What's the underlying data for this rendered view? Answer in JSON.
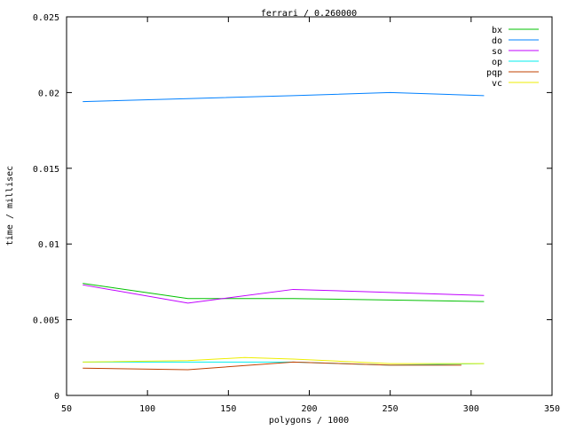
{
  "chart_data": {
    "type": "line",
    "title": "ferrari / 0.260000",
    "xlabel": "polygons / 1000",
    "ylabel": "time / millisec",
    "xlim": [
      50,
      350
    ],
    "ylim": [
      0,
      0.025
    ],
    "xticks": [
      "50",
      "100",
      "150",
      "200",
      "250",
      "300",
      "350"
    ],
    "yticks": [
      "0",
      "0.005",
      "0.01",
      "0.015",
      "0.02",
      "0.025"
    ],
    "grid": false,
    "legend_position": "top-right",
    "series": [
      {
        "name": "bx",
        "color": "#00c000",
        "x": [
          60,
          125,
          190,
          250,
          308
        ],
        "y": [
          0.0074,
          0.0064,
          0.0064,
          0.0063,
          0.0062
        ]
      },
      {
        "name": "do",
        "color": "#0080ff",
        "x": [
          60,
          125,
          190,
          250,
          308
        ],
        "y": [
          0.0194,
          0.0196,
          0.0198,
          0.02,
          0.0198
        ]
      },
      {
        "name": "so",
        "color": "#c000ff",
        "x": [
          60,
          125,
          190,
          250,
          308
        ],
        "y": [
          0.0073,
          0.0061,
          0.007,
          0.0068,
          0.0066
        ]
      },
      {
        "name": "op",
        "color": "#00eeee",
        "x": [
          60,
          125,
          190,
          250,
          308
        ],
        "y": [
          0.0022,
          0.0022,
          0.0022,
          0.002,
          0.0021
        ]
      },
      {
        "name": "pqp",
        "color": "#c04000",
        "x": [
          60,
          125,
          190,
          250,
          294
        ],
        "y": [
          0.0018,
          0.0017,
          0.0022,
          0.002,
          0.002
        ]
      },
      {
        "name": "vc",
        "color": "#eeee00",
        "x": [
          60,
          125,
          160,
          190,
          250,
          308
        ],
        "y": [
          0.0022,
          0.0023,
          0.0025,
          0.0024,
          0.0021,
          0.0021
        ]
      }
    ]
  }
}
